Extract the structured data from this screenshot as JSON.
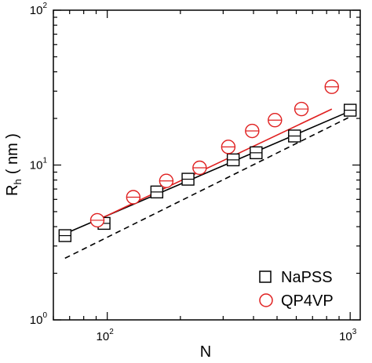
{
  "chart_data": {
    "type": "scatter",
    "xscale": "log",
    "yscale": "log",
    "xlim": [
      60,
      1100
    ],
    "ylim": [
      1,
      100
    ],
    "xlabel": "N",
    "ylabel": {
      "main": "R",
      "sub": "h",
      "unit": "( nm )"
    },
    "x_ticks": [
      {
        "value": 100,
        "base": "10",
        "exp": "2"
      },
      {
        "value": 1000,
        "base": "10",
        "exp": "3"
      }
    ],
    "y_ticks": [
      {
        "value": 1,
        "base": "10",
        "exp": "0"
      },
      {
        "value": 10,
        "base": "10",
        "exp": "1"
      },
      {
        "value": 100,
        "base": "10",
        "exp": "2"
      }
    ],
    "legend_position": "bottom-right",
    "series": [
      {
        "name": "NaPSS",
        "marker": "square",
        "color": "#000000",
        "points": [
          {
            "x": 67,
            "y": 3.5
          },
          {
            "x": 97,
            "y": 4.2
          },
          {
            "x": 160,
            "y": 6.7
          },
          {
            "x": 215,
            "y": 8.1
          },
          {
            "x": 330,
            "y": 10.8
          },
          {
            "x": 410,
            "y": 12.0
          },
          {
            "x": 590,
            "y": 15.4
          },
          {
            "x": 1000,
            "y": 22.6
          }
        ]
      },
      {
        "name": "QP4VP",
        "marker": "circle",
        "color": "#e02020",
        "points": [
          {
            "x": 91,
            "y": 4.4
          },
          {
            "x": 128,
            "y": 6.2
          },
          {
            "x": 175,
            "y": 7.9
          },
          {
            "x": 240,
            "y": 9.6
          },
          {
            "x": 315,
            "y": 13.1
          },
          {
            "x": 395,
            "y": 16.6
          },
          {
            "x": 490,
            "y": 19.5
          },
          {
            "x": 630,
            "y": 23.0
          },
          {
            "x": 840,
            "y": 32.0
          }
        ]
      }
    ],
    "lines": [
      {
        "style": "solid",
        "color": "#000000",
        "points": [
          {
            "x": 67,
            "y": 3.6
          },
          {
            "x": 1000,
            "y": 22.3
          }
        ]
      },
      {
        "style": "solid",
        "color": "#e02020",
        "points": [
          {
            "x": 91,
            "y": 4.4
          },
          {
            "x": 840,
            "y": 23.0
          }
        ]
      },
      {
        "style": "dashed",
        "color": "#000000",
        "points": [
          {
            "x": 67,
            "y": 2.5
          },
          {
            "x": 1000,
            "y": 20.5
          }
        ]
      }
    ]
  }
}
